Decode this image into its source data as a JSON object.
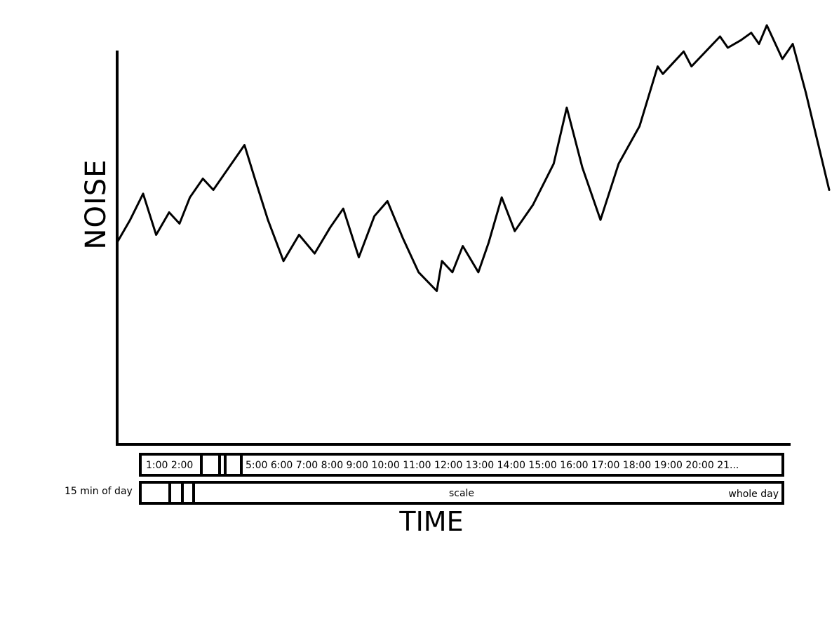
{
  "chart_data": {
    "type": "line",
    "title": "",
    "xlabel": "TIME",
    "ylabel": "NOISE",
    "grid": false,
    "legend": "none",
    "series": [
      {
        "values": [
          [
            0.0,
            44
          ],
          [
            0.5,
            50
          ],
          [
            1.0,
            57
          ],
          [
            1.5,
            46
          ],
          [
            2.0,
            52
          ],
          [
            2.4,
            49
          ],
          [
            2.8,
            56
          ],
          [
            3.3,
            61
          ],
          [
            3.7,
            58
          ],
          [
            4.1,
            62
          ],
          [
            4.9,
            70
          ],
          [
            5.3,
            61
          ],
          [
            5.8,
            50
          ],
          [
            6.4,
            39
          ],
          [
            7.0,
            46
          ],
          [
            7.6,
            41
          ],
          [
            8.2,
            48
          ],
          [
            8.7,
            53
          ],
          [
            9.3,
            40
          ],
          [
            9.9,
            51
          ],
          [
            10.4,
            55
          ],
          [
            11.0,
            45
          ],
          [
            11.6,
            36
          ],
          [
            12.3,
            31
          ],
          [
            12.5,
            39
          ],
          [
            12.9,
            36
          ],
          [
            13.3,
            43
          ],
          [
            13.9,
            36
          ],
          [
            14.3,
            44
          ],
          [
            14.8,
            56
          ],
          [
            15.3,
            47
          ],
          [
            16.0,
            54
          ],
          [
            16.8,
            65
          ],
          [
            17.3,
            80
          ],
          [
            17.9,
            64
          ],
          [
            18.6,
            50
          ],
          [
            19.3,
            65
          ],
          [
            20.1,
            75
          ],
          [
            20.8,
            91
          ],
          [
            21.0,
            89
          ],
          [
            21.8,
            95
          ],
          [
            22.1,
            91
          ],
          [
            23.2,
            99
          ],
          [
            23.5,
            96
          ],
          [
            24.0,
            98
          ],
          [
            24.4,
            100
          ],
          [
            24.7,
            97
          ],
          [
            25.0,
            102
          ],
          [
            25.6,
            93
          ],
          [
            26.0,
            97
          ],
          [
            26.5,
            84
          ],
          [
            27.4,
            58
          ]
        ]
      }
    ],
    "xlim": [
      0,
      27.4
    ],
    "ylim": [
      -10,
      105
    ]
  },
  "timeline": {
    "left_labels": "1:00 2:00",
    "right_labels": "5:00 6:00 7:00 8:00 9:00 10:00 11:00 12:00 13:00 14:00 15:00 16:00 17:00 18:00 19:00 20:00 21..."
  },
  "scale": {
    "left_label": "15 min of day",
    "center_label": "scale",
    "right_label": "whole day"
  }
}
